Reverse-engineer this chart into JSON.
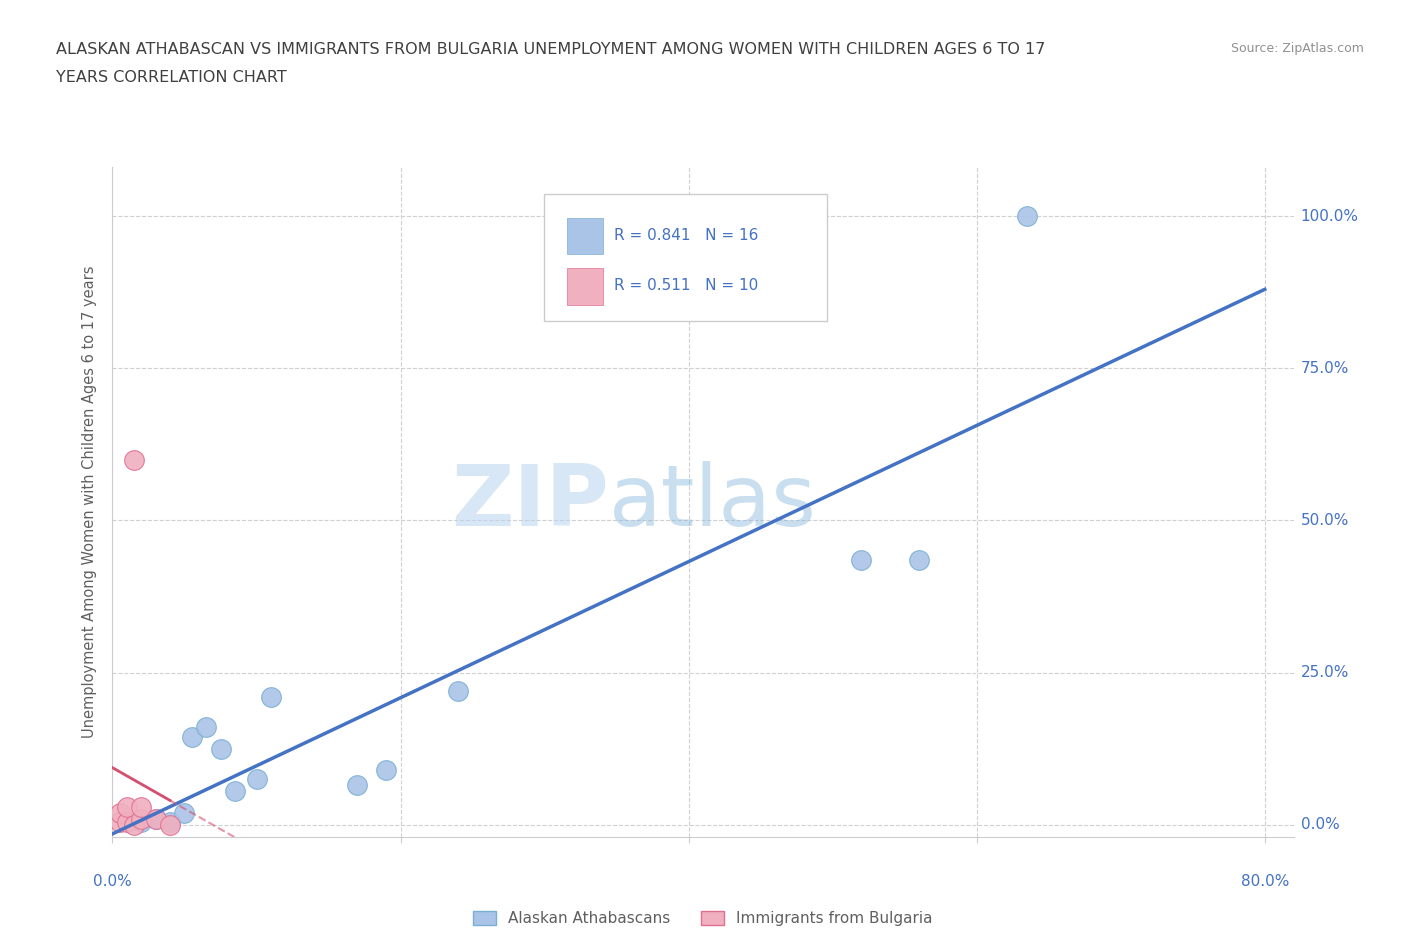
{
  "title_line1": "ALASKAN ATHABASCAN VS IMMIGRANTS FROM BULGARIA UNEMPLOYMENT AMONG WOMEN WITH CHILDREN AGES 6 TO 17",
  "title_line2": "YEARS CORRELATION CHART",
  "source": "Source: ZipAtlas.com",
  "ylabel": "Unemployment Among Women with Children Ages 6 to 17 years",
  "xlim": [
    0,
    0.82
  ],
  "ylim": [
    -0.02,
    1.08
  ],
  "xticks": [
    0.0,
    0.2,
    0.4,
    0.6,
    0.8
  ],
  "yticks": [
    0.0,
    0.25,
    0.5,
    0.75,
    1.0
  ],
  "xtick_labels_show": [
    "0.0%",
    "80.0%"
  ],
  "ytick_labels": [
    "0.0%",
    "25.0%",
    "50.0%",
    "75.0%",
    "100.0%"
  ],
  "background_color": "#ffffff",
  "grid_color": "#d0d0d0",
  "watermark_zip": "ZIP",
  "watermark_atlas": "atlas",
  "blue_scatter_x": [
    0.02,
    0.03,
    0.04,
    0.05,
    0.055,
    0.065,
    0.075,
    0.085,
    0.1,
    0.11,
    0.17,
    0.19,
    0.24,
    0.52,
    0.56,
    0.635
  ],
  "blue_scatter_y": [
    0.005,
    0.01,
    0.005,
    0.02,
    0.145,
    0.16,
    0.125,
    0.055,
    0.075,
    0.21,
    0.065,
    0.09,
    0.22,
    0.435,
    0.435,
    1.0
  ],
  "pink_scatter_x": [
    0.005,
    0.005,
    0.01,
    0.01,
    0.015,
    0.02,
    0.02,
    0.03,
    0.04,
    0.015
  ],
  "pink_scatter_y": [
    0.005,
    0.02,
    0.005,
    0.03,
    0.0,
    0.01,
    0.03,
    0.01,
    0.0,
    0.6
  ],
  "blue_color": "#aac4e8",
  "blue_edge_color": "#7aafd4",
  "pink_color": "#f0b0c0",
  "pink_edge_color": "#e07090",
  "blue_line_color": "#4472c4",
  "pink_line_color": "#d45070",
  "R_blue": 0.841,
  "N_blue": 16,
  "R_pink": 0.511,
  "N_pink": 10,
  "legend_blue_label": "Alaskan Athabascans",
  "legend_pink_label": "Immigrants from Bulgaria",
  "marker_size": 200,
  "title_color": "#404040",
  "source_color": "#909090",
  "axis_label_color": "#606060",
  "tick_label_color": "#4472c4",
  "legend_R_color": "#4472c4"
}
